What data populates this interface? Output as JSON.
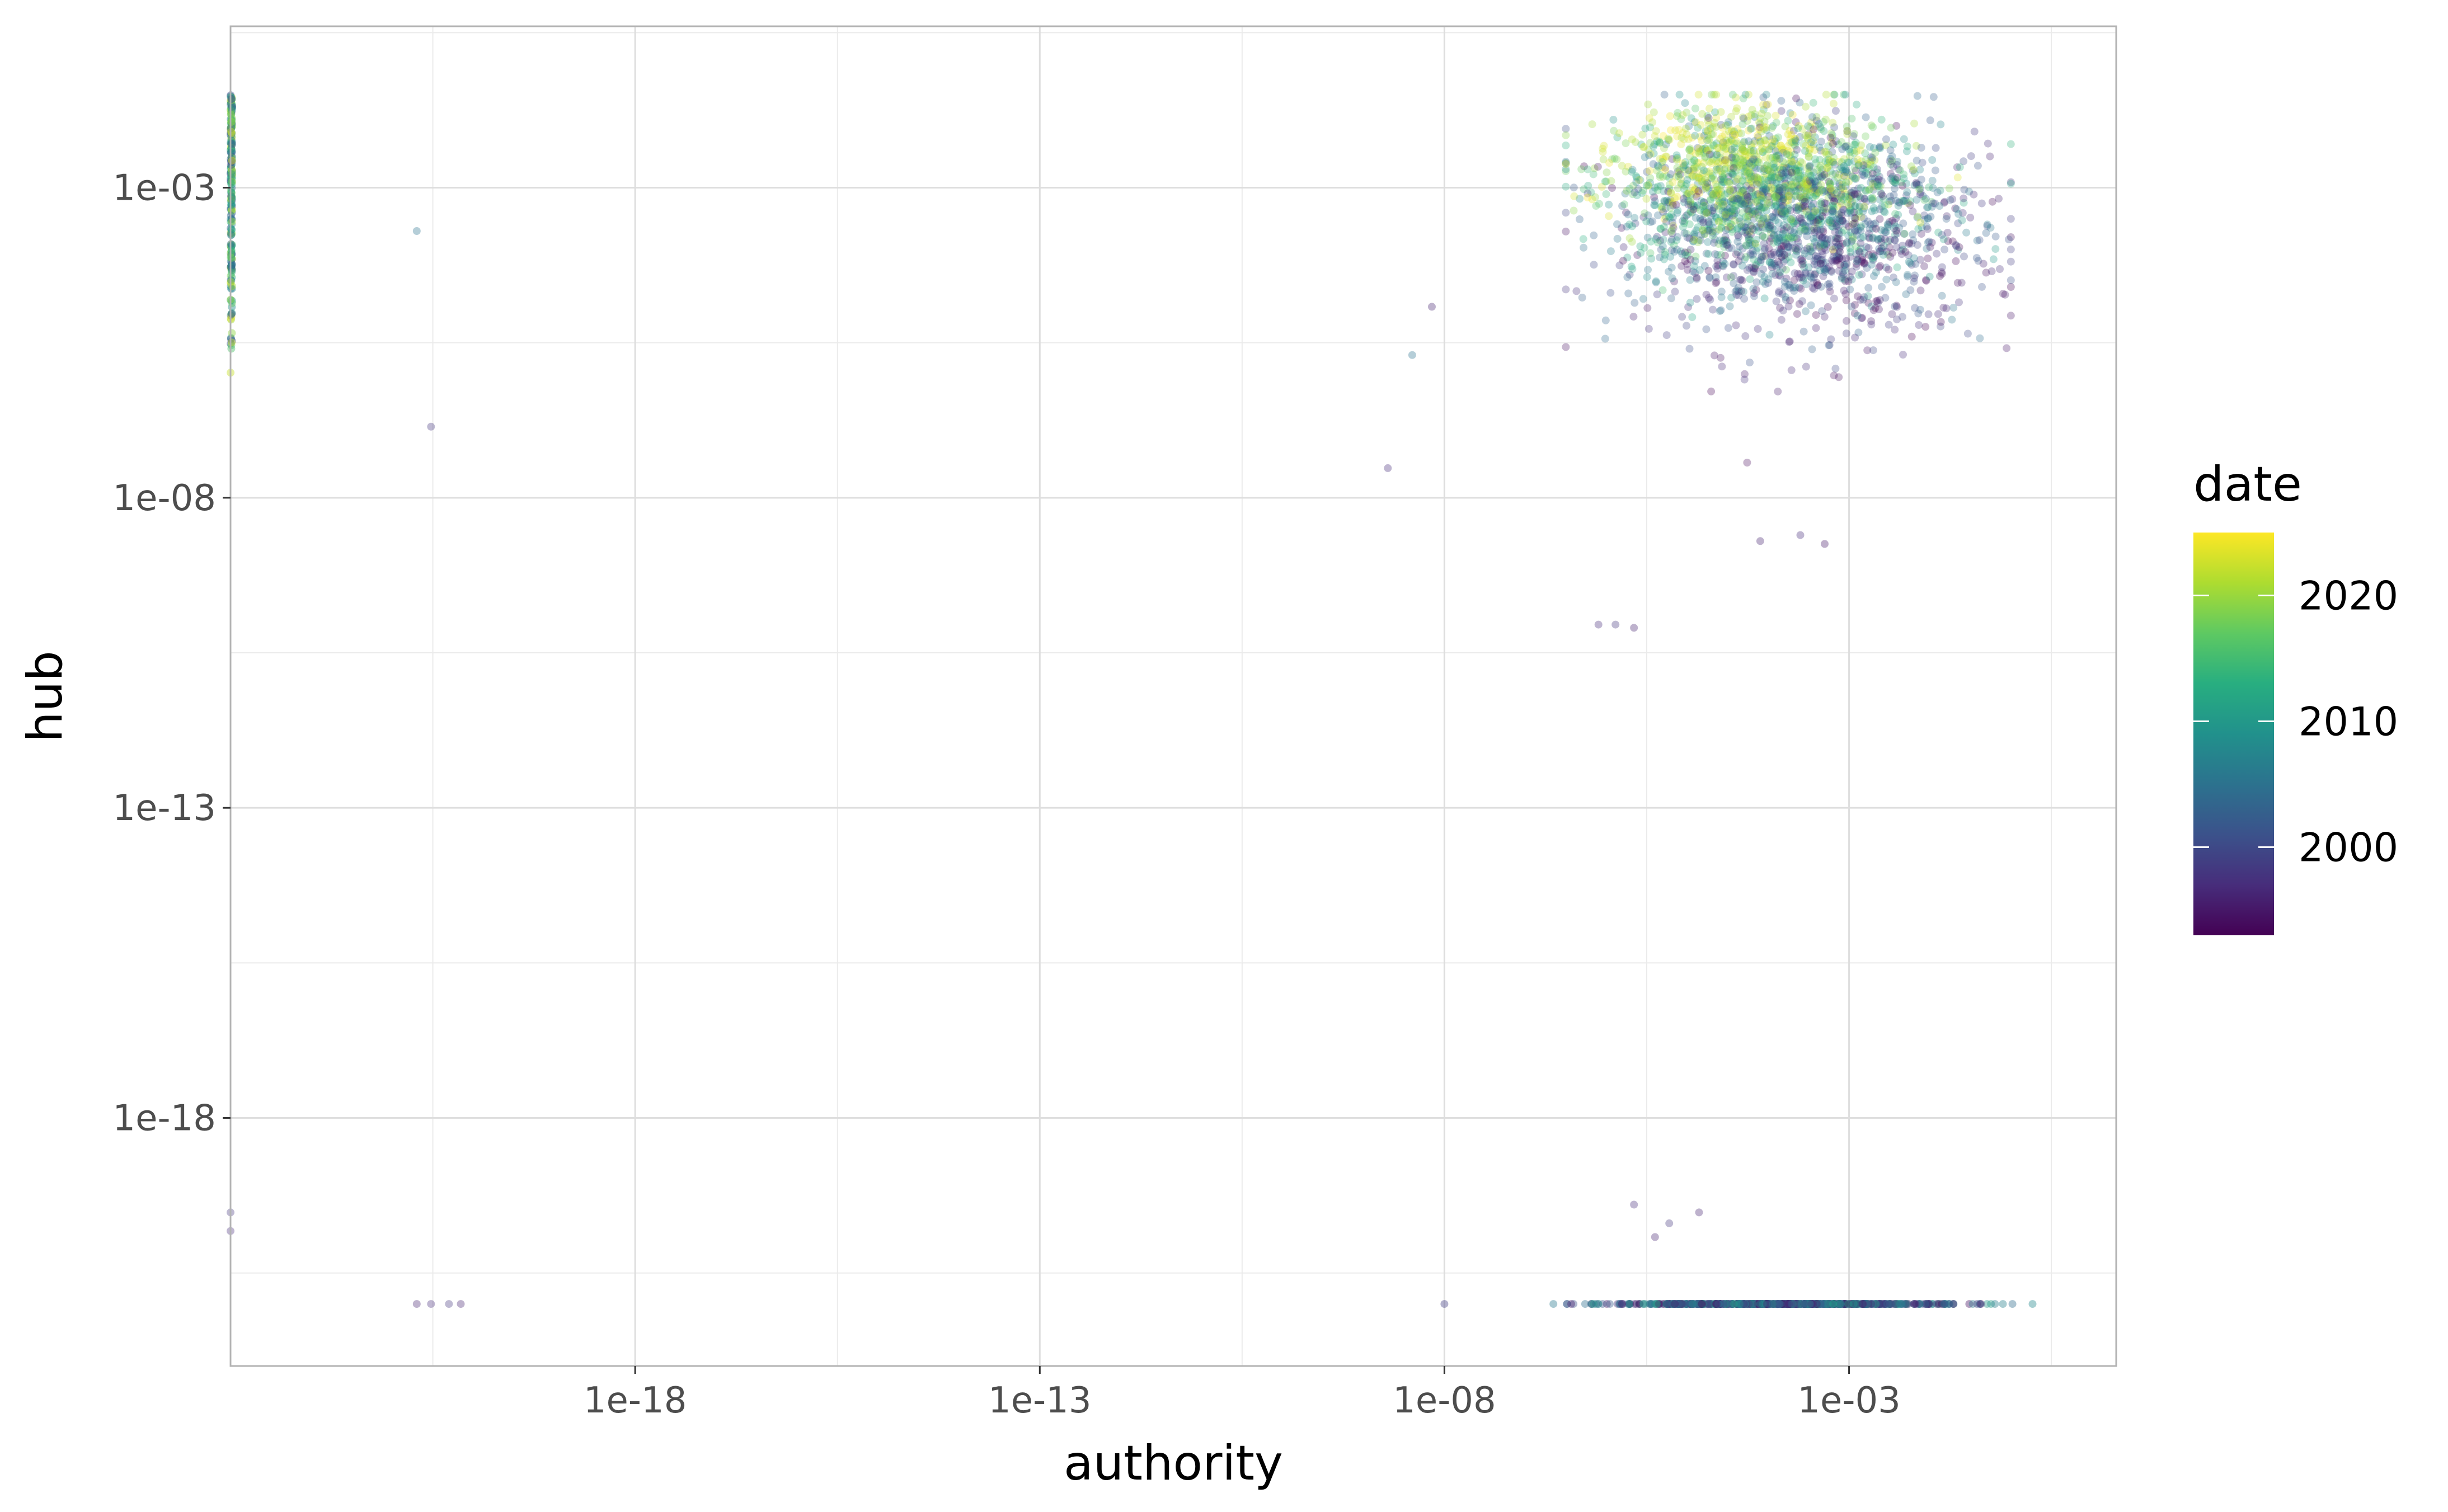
{
  "chart_data": {
    "type": "scatter",
    "title": "",
    "xlabel": "authority",
    "ylabel": "hub",
    "x_scale": "log10",
    "y_scale": "log10",
    "x_ticks": [
      {
        "value": 1e-18,
        "label": "1e-18"
      },
      {
        "value": 1e-13,
        "label": "1e-13"
      },
      {
        "value": 1e-08,
        "label": "1e-08"
      },
      {
        "value": 0.001,
        "label": "1e-03"
      }
    ],
    "y_ticks": [
      {
        "value": 0.001,
        "label": "1e-03"
      },
      {
        "value": 1e-08,
        "label": "1e-08"
      },
      {
        "value": 1e-13,
        "label": "1e-13"
      },
      {
        "value": 1e-18,
        "label": "1e-18"
      }
    ],
    "xlim": [
      1e-23,
      2.0
    ],
    "ylim": [
      1e-22,
      0.4
    ],
    "grid": true,
    "legend": {
      "title": "date",
      "placement": "right",
      "type": "continuous",
      "palette": "viridis",
      "range": [
        1993,
        2025
      ],
      "breaks": [
        2000,
        2010,
        2020
      ]
    },
    "clusters": [
      {
        "description": "main cloud",
        "x_log10_range": [
          -6.5,
          -1.0
        ],
        "y_log10_range": [
          -7.0,
          -1.5
        ],
        "date_range": [
          1993,
          2025
        ]
      },
      {
        "description": "left edge strip (authority near zero)",
        "x_value": 1e-23,
        "y_log10_range": [
          -6.0,
          -1.5
        ],
        "date_range": [
          2000,
          2025
        ]
      },
      {
        "description": "bottom row (hub near zero)",
        "x_log10_range": [
          -8.0,
          0.0
        ],
        "y_value": 1e-21,
        "date_range": [
          1993,
          2012
        ]
      }
    ],
    "outliers": [
      {
        "x": 2e-21,
        "y": 0.0002,
        "date": 2005
      },
      {
        "x": 3e-21,
        "y": 1.4e-07,
        "date": 1998
      },
      {
        "x": 2e-09,
        "y": 3e-08,
        "date": 1997
      },
      {
        "x": 4e-09,
        "y": 2e-06,
        "date": 2005
      },
      {
        "x": 7e-09,
        "y": 1.2e-05,
        "date": 1996
      },
      {
        "x": 8e-07,
        "y": 9e-11,
        "date": 1997
      },
      {
        "x": 1.3e-06,
        "y": 9e-11,
        "date": 1998
      },
      {
        "x": 2.2e-06,
        "y": 8e-11,
        "date": 1996
      },
      {
        "x": 8e-05,
        "y": 2e-09,
        "date": 1996
      },
      {
        "x": 0.00025,
        "y": 2.5e-09,
        "date": 1997
      },
      {
        "x": 0.0005,
        "y": 1.8e-09,
        "date": 1995
      },
      {
        "x": 2.2e-06,
        "y": 4e-20,
        "date": 1997
      },
      {
        "x": 4e-06,
        "y": 1.2e-20,
        "date": 1996
      },
      {
        "x": 6e-06,
        "y": 2e-20,
        "date": 1998
      },
      {
        "x": 1.4e-05,
        "y": 3e-20,
        "date": 1996
      },
      {
        "x": 1e-23,
        "y": 3e-20,
        "date": 1998
      },
      {
        "x": 1e-23,
        "y": 1.5e-20,
        "date": 1997
      },
      {
        "x": 2e-21,
        "y": 1e-21,
        "date": 1996
      },
      {
        "x": 3e-21,
        "y": 1e-21,
        "date": 1997
      },
      {
        "x": 5e-21,
        "y": 1e-21,
        "date": 1998
      },
      {
        "x": 7e-21,
        "y": 1e-21,
        "date": 1996
      }
    ]
  }
}
